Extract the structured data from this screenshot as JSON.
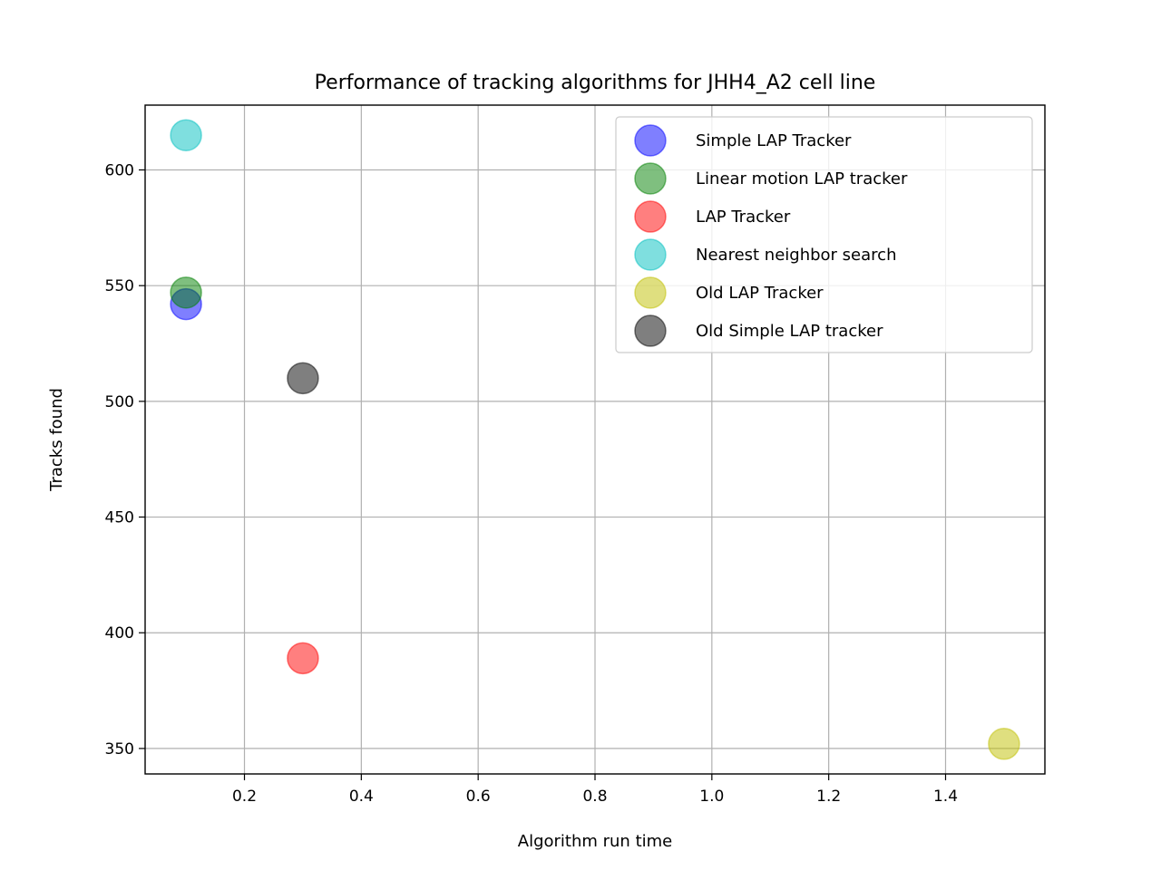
{
  "chart_data": {
    "type": "scatter",
    "title": "Performance of tracking algorithms for JHH4_A2 cell line",
    "xlabel": "Algorithm run time",
    "ylabel": "Tracks found",
    "xlim": [
      0.03,
      1.57
    ],
    "ylim": [
      339,
      628
    ],
    "xticks": [
      0.2,
      0.4,
      0.6,
      0.8,
      1.0,
      1.2,
      1.4
    ],
    "xtick_labels": [
      "0.2",
      "0.4",
      "0.6",
      "0.8",
      "1.0",
      "1.2",
      "1.4"
    ],
    "yticks": [
      350,
      400,
      450,
      500,
      550,
      600
    ],
    "ytick_labels": [
      "350",
      "400",
      "450",
      "500",
      "550",
      "600"
    ],
    "grid": true,
    "legend_position": "top-right",
    "series": [
      {
        "name": "Simple LAP Tracker",
        "color": "#0000ff",
        "points": [
          {
            "x": 0.1,
            "y": 542
          }
        ]
      },
      {
        "name": "Linear motion LAP tracker",
        "color": "#008000",
        "points": [
          {
            "x": 0.1,
            "y": 547
          }
        ]
      },
      {
        "name": "LAP Tracker",
        "color": "#ff0000",
        "points": [
          {
            "x": 0.3,
            "y": 389
          }
        ]
      },
      {
        "name": "Nearest neighbor search",
        "color": "#00bfbf",
        "points": [
          {
            "x": 0.1,
            "y": 615
          }
        ]
      },
      {
        "name": "Old LAP Tracker",
        "color": "#bfbf00",
        "points": [
          {
            "x": 1.5,
            "y": 352
          }
        ]
      },
      {
        "name": "Old Simple LAP tracker",
        "color": "#000000",
        "points": [
          {
            "x": 0.3,
            "y": 510
          }
        ]
      }
    ]
  }
}
